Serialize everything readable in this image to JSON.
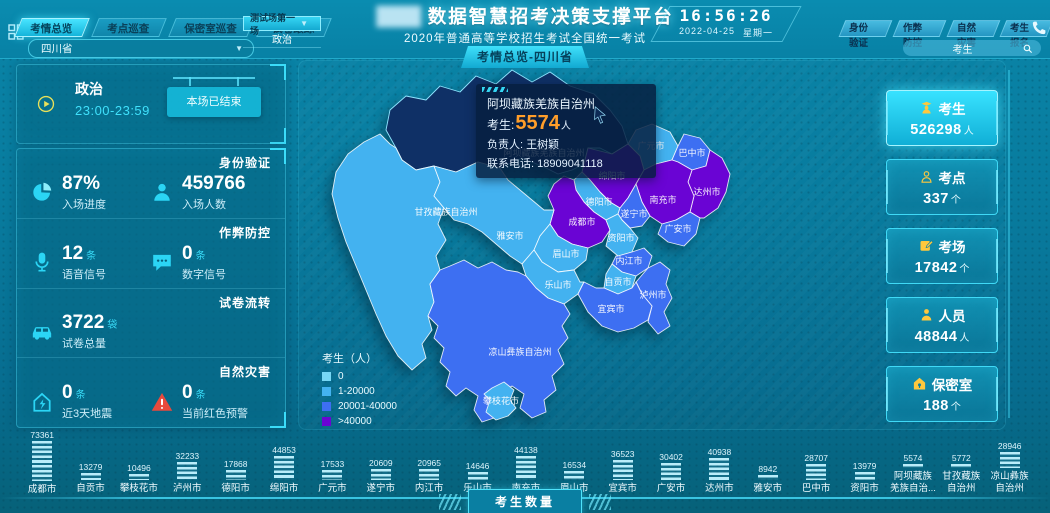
{
  "header": {
    "title_redacted": "████",
    "title": "数据智慧招考决策支撑平台",
    "subtitle": "2020年普通高等学校招生考试全国统一考试",
    "breadcrumb": "考情总览-四川省",
    "left_tabs": [
      {
        "label": "考情总览",
        "active": true
      },
      {
        "label": "考点巡查",
        "active": false
      },
      {
        "label": "保密室巡查",
        "active": false
      },
      {
        "label": "试卷跟踪",
        "active": false
      }
    ],
    "session_select": {
      "value": "测试场第一场",
      "subject": "政治"
    },
    "clock": {
      "time": "16:56:26",
      "date": "2022-04-25",
      "weekday": "星期一"
    },
    "right_tabs": [
      "身份验证",
      "作弊防控",
      "自然灾害",
      "考生报名"
    ],
    "region_select": {
      "value": "四川省"
    },
    "search": {
      "value": "考生"
    }
  },
  "left_panel": {
    "session": {
      "subject": "政治",
      "time": "23:00-23:59",
      "status": "本场已结束"
    },
    "sections": [
      {
        "title": "身份验证",
        "items": [
          {
            "icon": "pie-chart-icon",
            "value": "87%",
            "unit": "",
            "label": "入场进度"
          },
          {
            "icon": "person-icon",
            "value": "459766",
            "unit": "",
            "label": "入场人数"
          }
        ]
      },
      {
        "title": "作弊防控",
        "items": [
          {
            "icon": "microphone-icon",
            "value": "12",
            "unit": "条",
            "label": "语音信号"
          },
          {
            "icon": "chat-icon",
            "value": "0",
            "unit": "条",
            "label": "数字信号"
          }
        ]
      },
      {
        "title": "试卷流转",
        "items": [
          {
            "icon": "car-icon",
            "value": "3722",
            "unit": "袋",
            "label": "试卷总量"
          }
        ]
      },
      {
        "title": "自然灾害",
        "items": [
          {
            "icon": "earthquake-icon",
            "value": "0",
            "unit": "条",
            "label": "近3天地震"
          },
          {
            "icon": "warning-icon",
            "value": "0",
            "unit": "条",
            "label": "当前红色预警"
          }
        ]
      }
    ]
  },
  "right_panel": {
    "stats": [
      {
        "icon": "graduate-icon",
        "label": "考生",
        "value": "526298",
        "unit": "人",
        "active": true
      },
      {
        "icon": "site-icon",
        "label": "考点",
        "value": "337",
        "unit": "个",
        "active": false
      },
      {
        "icon": "exam-room-icon",
        "label": "考场",
        "value": "17842",
        "unit": "个",
        "active": false
      },
      {
        "icon": "people-icon",
        "label": "人员",
        "value": "48844",
        "unit": "人",
        "active": false
      },
      {
        "icon": "secret-room-icon",
        "label": "保密室",
        "value": "188",
        "unit": "个",
        "active": false
      }
    ]
  },
  "map": {
    "hovered": "阿坝藏族羌族自治州",
    "hover_color": "#0f3066",
    "tooltip": {
      "title": "阿坝藏族羌族自治州",
      "row_label": "考生:",
      "value": "5574",
      "unit": "人",
      "manager": "负责人: 王树颖",
      "phone": "联系电话: 18909041118"
    },
    "legend": {
      "title": "考生（人）",
      "items": [
        {
          "label": "0",
          "color": "#76d7f5"
        },
        {
          "label": "1-20000",
          "color": "#43b2f0"
        },
        {
          "label": "20001-40000",
          "color": "#3d6ff2"
        },
        {
          "label": ">40000",
          "color": "#6a04d4"
        }
      ]
    },
    "regions": [
      {
        "name": "阿坝藏族羌族自治州",
        "value": 5574,
        "band": 1
      },
      {
        "name": "甘孜藏族自治州",
        "value": 5772,
        "band": 1
      },
      {
        "name": "广元市",
        "value": 17533,
        "band": 1
      },
      {
        "name": "绵阳市",
        "value": 44853,
        "band": 3
      },
      {
        "name": "巴中市",
        "value": 28707,
        "band": 2
      },
      {
        "name": "达州市",
        "value": 40938,
        "band": 3
      },
      {
        "name": "南充市",
        "value": 44138,
        "band": 3
      },
      {
        "name": "德阳市",
        "value": 17868,
        "band": 1
      },
      {
        "name": "成都市",
        "value": 73361,
        "band": 3
      },
      {
        "name": "遂宁市",
        "value": 20609,
        "band": 2
      },
      {
        "name": "广安市",
        "value": 30402,
        "band": 2
      },
      {
        "name": "资阳市",
        "value": 13979,
        "band": 1
      },
      {
        "name": "雅安市",
        "value": 8942,
        "band": 1
      },
      {
        "name": "眉山市",
        "value": 16534,
        "band": 1
      },
      {
        "name": "内江市",
        "value": 20965,
        "band": 2
      },
      {
        "name": "乐山市",
        "value": 14646,
        "band": 1
      },
      {
        "name": "自贡市",
        "value": 13279,
        "band": 1
      },
      {
        "name": "泸州市",
        "value": 32233,
        "band": 2
      },
      {
        "name": "宜宾市",
        "value": 36523,
        "band": 2
      },
      {
        "name": "凉山彝族自治州",
        "value": 28946,
        "band": 2
      },
      {
        "name": "攀枝花市",
        "value": 10496,
        "band": 1
      }
    ]
  },
  "chart_data": {
    "type": "bar",
    "title": "考生数量",
    "xlabel": "",
    "ylabel": "",
    "ylim": [
      0,
      80000
    ],
    "categories": [
      "成都市",
      "自贡市",
      "攀枝花市",
      "泸州市",
      "德阳市",
      "绵阳市",
      "广元市",
      "遂宁市",
      "内江市",
      "乐山市",
      "南充市",
      "眉山市",
      "宜宾市",
      "广安市",
      "达州市",
      "雅安市",
      "巴中市",
      "资阳市",
      "阿坝藏族羌族自治州",
      "甘孜藏族自治州",
      "凉山彝族自治州"
    ],
    "tick_labels": [
      "成都市",
      "自贡市",
      "攀枝花市",
      "泸州市",
      "德阳市",
      "绵阳市",
      "广元市",
      "遂宁市",
      "内江市",
      "乐山市",
      "南充市",
      "眉山市",
      "宜宾市",
      "广安市",
      "达州市",
      "雅安市",
      "巴中市",
      "资阳市",
      "阿坝藏族\n羌族自治...",
      "甘孜藏族\n自治州",
      "凉山彝族\n自治州"
    ],
    "values": [
      73361,
      13279,
      10496,
      32233,
      17868,
      44853,
      17533,
      20609,
      20965,
      14646,
      44138,
      16534,
      36523,
      30402,
      40938,
      8942,
      28707,
      13979,
      5574,
      5772,
      28946
    ]
  }
}
